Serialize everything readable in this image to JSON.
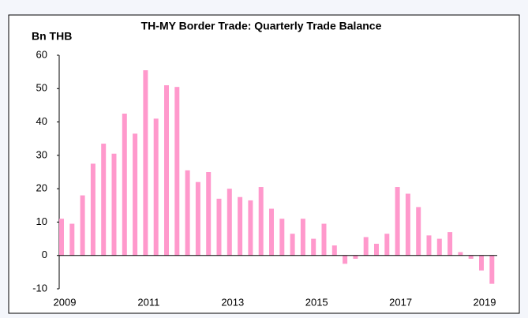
{
  "chart_data": {
    "type": "bar",
    "title": "TH-MY Border Trade: Quarterly Trade Balance",
    "y_label": "Bn THB",
    "categories": [
      "2009",
      null,
      null,
      null,
      null,
      null,
      null,
      null,
      "2011",
      null,
      null,
      null,
      null,
      null,
      null,
      null,
      "2013",
      null,
      null,
      null,
      null,
      null,
      null,
      null,
      "2015",
      null,
      null,
      null,
      null,
      null,
      null,
      null,
      "2017",
      null,
      null,
      null,
      null,
      null,
      null,
      null,
      "2019",
      null
    ],
    "values": [
      11,
      9.5,
      18,
      27.5,
      33.5,
      30.5,
      42.5,
      36.5,
      55.5,
      41,
      51,
      50.5,
      25.5,
      22,
      25,
      17,
      20,
      17.5,
      16.5,
      20.5,
      14,
      11,
      6.5,
      11,
      5,
      9.5,
      3,
      -2.5,
      -1,
      5.5,
      3.5,
      6.5,
      20.5,
      18.5,
      14.5,
      6,
      5,
      7,
      1,
      -1,
      -4.5,
      -8.5
    ],
    "color": "#ff99cc",
    "ylim": [
      -10,
      60
    ],
    "yticks": [
      -10,
      0,
      10,
      20,
      30,
      40,
      50,
      60
    ],
    "grid": false
  }
}
